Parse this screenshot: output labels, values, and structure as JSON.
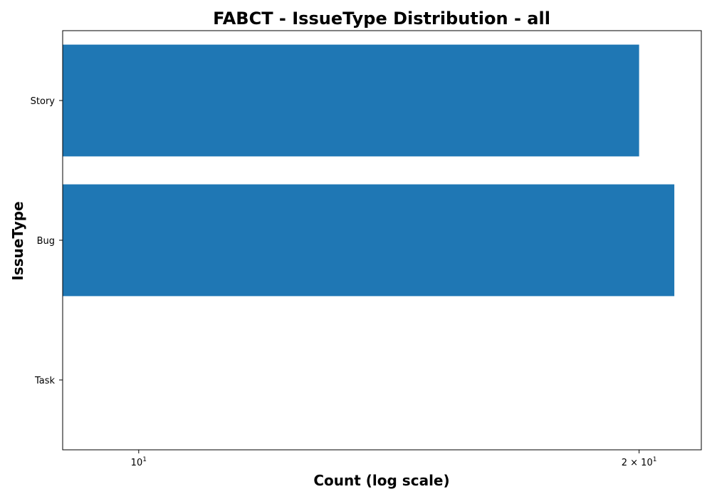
{
  "chart_data": {
    "type": "bar",
    "orientation": "horizontal",
    "title": "FABCT - IssueType Distribution - all",
    "xlabel": "Count (log scale)",
    "ylabel": "IssueType",
    "x_scale": "log",
    "xlim": [
      9.0,
      21.8
    ],
    "categories": [
      "Story",
      "Bug",
      "Task"
    ],
    "values": [
      20,
      21,
      9
    ],
    "bar_color": "#1f77b4",
    "x_ticks": [
      {
        "value": 10,
        "base": "10",
        "exponent": "1",
        "prefix": ""
      },
      {
        "value": 20,
        "base": "10",
        "exponent": "1",
        "prefix": "2 × "
      }
    ],
    "grid": false,
    "legend": "none"
  }
}
